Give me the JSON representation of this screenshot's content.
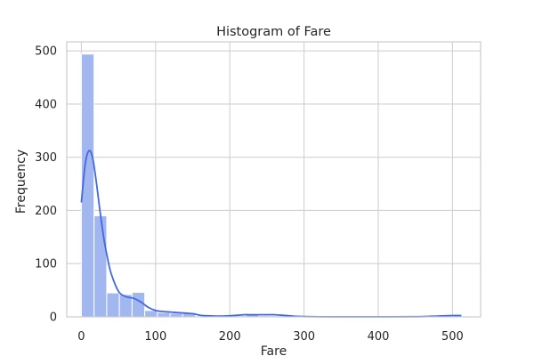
{
  "chart_data": {
    "type": "bar",
    "title": "Histogram of Fare",
    "xlabel": "Fare",
    "ylabel": "Frequency",
    "xlim": [
      -19.7,
      537.9
    ],
    "ylim": [
      0,
      517
    ],
    "xticks": [
      0,
      100,
      200,
      300,
      400,
      500
    ],
    "yticks": [
      0,
      100,
      200,
      300,
      400,
      500
    ],
    "grid": true,
    "bin_width": 17.08,
    "bins": [
      {
        "x0": 0,
        "count": 494
      },
      {
        "x0": 17.08,
        "count": 190
      },
      {
        "x0": 34.16,
        "count": 45
      },
      {
        "x0": 51.23,
        "count": 42
      },
      {
        "x0": 68.31,
        "count": 46
      },
      {
        "x0": 85.39,
        "count": 12
      },
      {
        "x0": 102.47,
        "count": 8
      },
      {
        "x0": 119.55,
        "count": 7
      },
      {
        "x0": 136.63,
        "count": 8
      },
      {
        "x0": 153.7,
        "count": 0
      },
      {
        "x0": 170.78,
        "count": 0
      },
      {
        "x0": 187.86,
        "count": 0
      },
      {
        "x0": 204.94,
        "count": 2
      },
      {
        "x0": 222.02,
        "count": 4
      },
      {
        "x0": 239.1,
        "count": 2
      },
      {
        "x0": 256.18,
        "count": 2
      },
      {
        "x0": 273.25,
        "count": 2
      },
      {
        "x0": 290.33,
        "count": 0
      },
      {
        "x0": 307.41,
        "count": 0
      },
      {
        "x0": 324.49,
        "count": 0
      },
      {
        "x0": 341.57,
        "count": 0
      },
      {
        "x0": 358.65,
        "count": 0
      },
      {
        "x0": 375.73,
        "count": 0
      },
      {
        "x0": 392.8,
        "count": 0
      },
      {
        "x0": 409.88,
        "count": 0
      },
      {
        "x0": 426.96,
        "count": 0
      },
      {
        "x0": 444.04,
        "count": 0
      },
      {
        "x0": 461.12,
        "count": 0
      },
      {
        "x0": 478.2,
        "count": 0
      },
      {
        "x0": 495.27,
        "count": 3
      }
    ],
    "kde": {
      "x": [
        0,
        5,
        10,
        15,
        20,
        25,
        30,
        35,
        40,
        50,
        60,
        70,
        80,
        90,
        100,
        110,
        120,
        130,
        140,
        150,
        160,
        170,
        180,
        190,
        200,
        210,
        220,
        230,
        240,
        250,
        260,
        270,
        280,
        290,
        300,
        320,
        350,
        400,
        450,
        480,
        500,
        512
      ],
      "y": [
        215,
        285,
        312,
        300,
        255,
        200,
        150,
        112,
        82,
        48,
        38,
        35,
        28,
        18,
        12,
        10,
        9,
        8,
        7,
        6,
        3,
        2,
        1.5,
        1.5,
        2,
        3,
        4,
        4,
        4,
        4,
        4,
        3,
        2,
        1,
        0.5,
        0.2,
        0.1,
        0.1,
        0.3,
        1.5,
        2.5,
        2.5
      ]
    },
    "colors": {
      "bar_fill": "#a2b6f0",
      "bar_edge": "#ffffff",
      "kde_line": "#4169e1",
      "grid": "#d0d0d6",
      "axes_edge": "#cccccc",
      "text": "#262626"
    }
  }
}
